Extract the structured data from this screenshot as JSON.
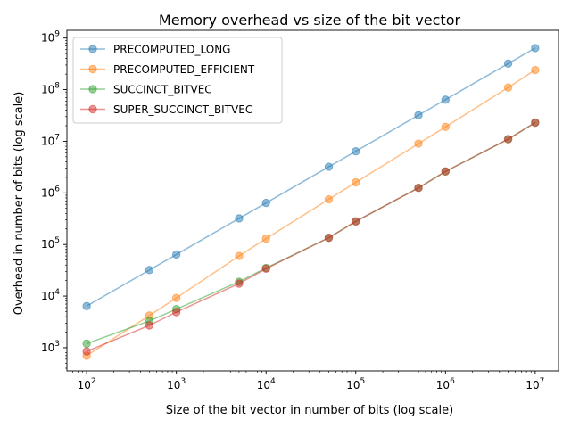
{
  "chart_data": {
    "type": "line",
    "title": "Memory overhead vs size of the bit vector",
    "xlabel": "Size of the bit vector in number of bits (log scale)",
    "ylabel": "Overhead in number of bits (log scale)",
    "xscale": "log",
    "yscale": "log",
    "xlim_exp": [
      1.78,
      7.26
    ],
    "ylim_exp": [
      2.55,
      9.15
    ],
    "xticks": [
      {
        "base": "10",
        "exp": "2",
        "value": 100
      },
      {
        "base": "10",
        "exp": "3",
        "value": 1000
      },
      {
        "base": "10",
        "exp": "4",
        "value": 10000
      },
      {
        "base": "10",
        "exp": "5",
        "value": 100000
      },
      {
        "base": "10",
        "exp": "6",
        "value": 1000000
      },
      {
        "base": "10",
        "exp": "7",
        "value": 10000000
      }
    ],
    "yticks": [
      {
        "base": "10",
        "exp": "3",
        "value": 1000
      },
      {
        "base": "10",
        "exp": "4",
        "value": 10000
      },
      {
        "base": "10",
        "exp": "5",
        "value": 100000
      },
      {
        "base": "10",
        "exp": "6",
        "value": 1000000
      },
      {
        "base": "10",
        "exp": "7",
        "value": 10000000
      },
      {
        "base": "10",
        "exp": "8",
        "value": 100000000
      },
      {
        "base": "10",
        "exp": "9",
        "value": 1000000000
      }
    ],
    "grid": false,
    "legend_position": "top-left",
    "x": [
      100,
      500,
      1000,
      5000,
      10000,
      50000,
      100000,
      500000,
      1000000,
      5000000,
      10000000
    ],
    "series": [
      {
        "name": "PRECOMPUTED_LONG",
        "color": "#1f77b4",
        "values": [
          6400,
          32000,
          64000,
          320000,
          640000,
          3200000,
          6400000,
          32000000,
          64000000,
          320000000,
          640000000
        ]
      },
      {
        "name": "PRECOMPUTED_EFFICIENT",
        "color": "#ff7f0e",
        "values": [
          700,
          4200,
          9200,
          60000,
          130000,
          750000,
          1600000,
          9000000,
          19000000,
          110000000,
          240000000
        ]
      },
      {
        "name": "SUCCINCT_BITVEC",
        "color": "#2ca02c",
        "values": [
          1200,
          3300,
          5600,
          19000,
          35000,
          135000,
          280000,
          1250000,
          2600000,
          11000000,
          23000000
        ]
      },
      {
        "name": "SUPER_SUCCINCT_BITVEC",
        "color": "#d62728",
        "values": [
          850,
          2700,
          4900,
          17500,
          34000,
          135000,
          280000,
          1250000,
          2600000,
          11000000,
          23000000
        ]
      }
    ]
  }
}
